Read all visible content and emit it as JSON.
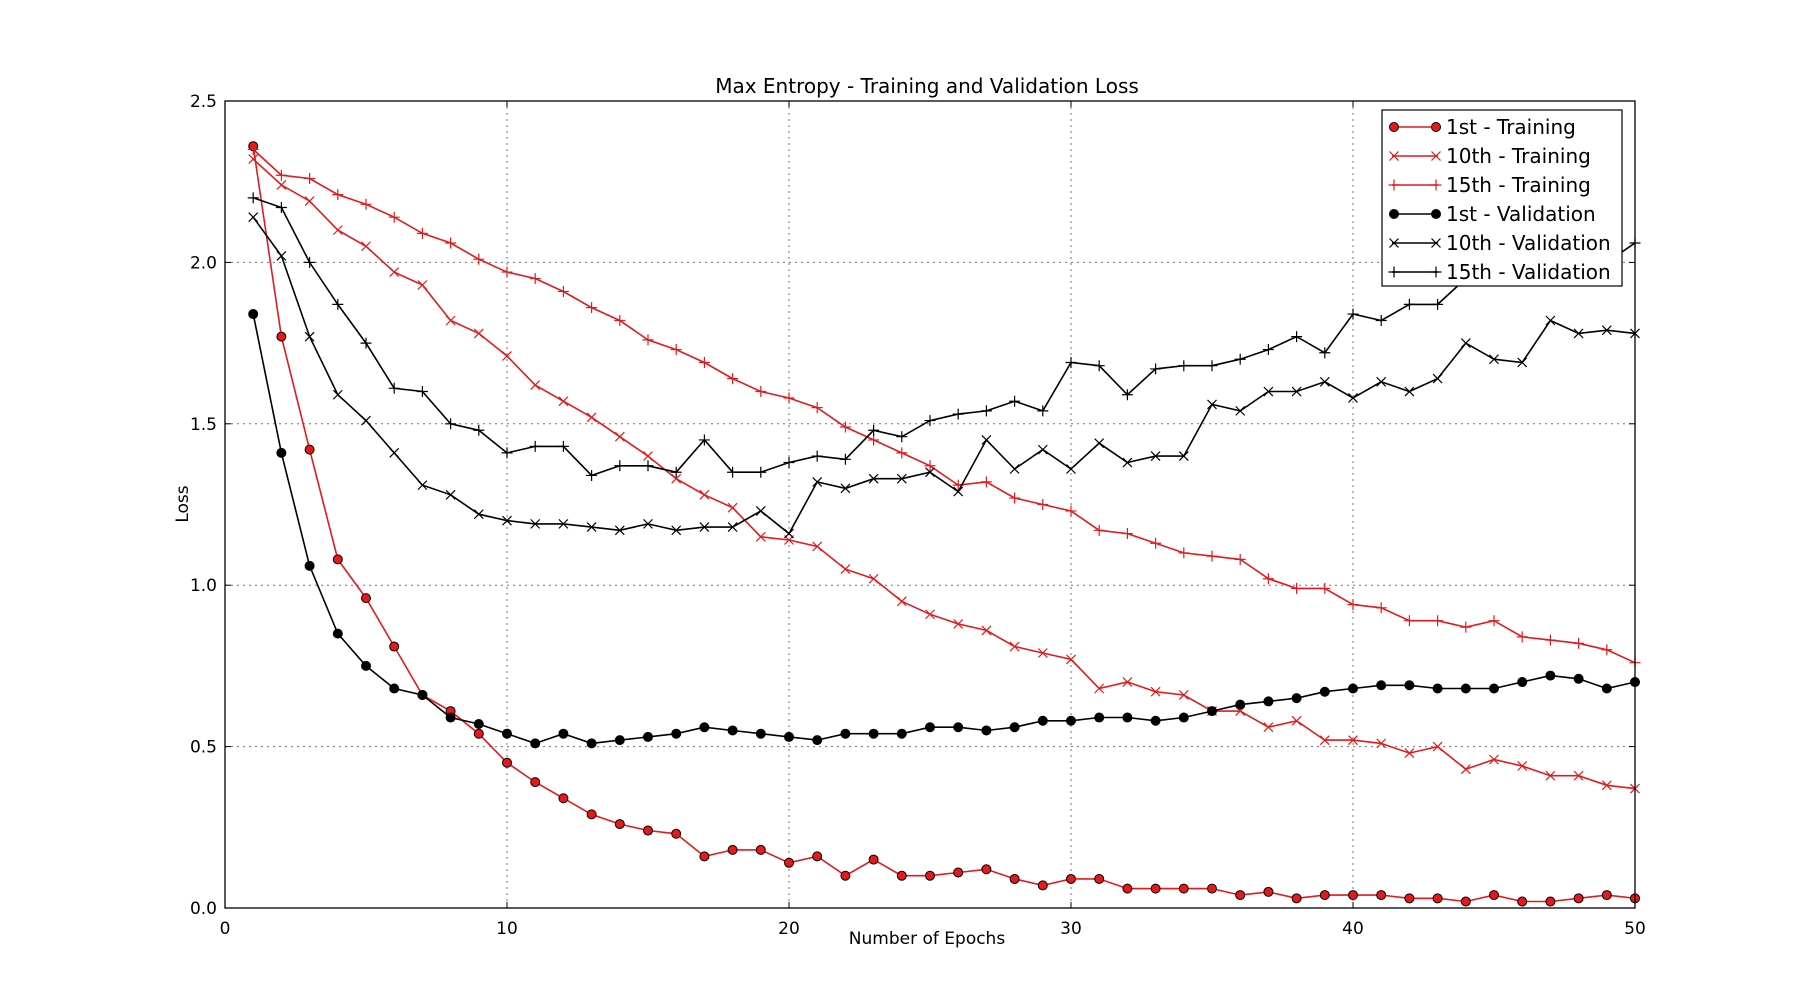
{
  "chart_data": {
    "type": "line",
    "title": "Max Entropy - Training and Validation Loss",
    "xlabel": "Number of Epochs",
    "ylabel": "Loss",
    "xlim": [
      0,
      50
    ],
    "ylim": [
      0,
      2.5
    ],
    "xticks": [
      "0",
      "10",
      "20",
      "30",
      "40",
      "50"
    ],
    "yticks": [
      "0.0",
      "0.5",
      "1.0",
      "1.5",
      "2.0",
      "2.5"
    ],
    "grid": true,
    "legend_position": "top-right",
    "x": [
      1,
      2,
      3,
      4,
      5,
      6,
      7,
      8,
      9,
      10,
      11,
      12,
      13,
      14,
      15,
      16,
      17,
      18,
      19,
      20,
      21,
      22,
      23,
      24,
      25,
      26,
      27,
      28,
      29,
      30,
      31,
      32,
      33,
      34,
      35,
      36,
      37,
      38,
      39,
      40,
      41,
      42,
      43,
      44,
      45,
      46,
      47,
      48,
      49,
      50
    ],
    "series": [
      {
        "name": "1st - Training",
        "color": "#e31a1c",
        "marker": "circle",
        "values": [
          2.36,
          1.77,
          1.42,
          1.08,
          0.96,
          0.81,
          0.66,
          0.61,
          0.54,
          0.45,
          0.39,
          0.34,
          0.29,
          0.26,
          0.24,
          0.23,
          0.16,
          0.18,
          0.18,
          0.14,
          0.16,
          0.1,
          0.15,
          0.1,
          0.1,
          0.11,
          0.12,
          0.09,
          0.07,
          0.09,
          0.09,
          0.06,
          0.06,
          0.06,
          0.06,
          0.04,
          0.05,
          0.03,
          0.04,
          0.04,
          0.04,
          0.03,
          0.03,
          0.02,
          0.04,
          0.02,
          0.02,
          0.03,
          0.04,
          0.03
        ]
      },
      {
        "name": "10th - Training",
        "color": "#e31a1c",
        "marker": "x",
        "values": [
          2.32,
          2.24,
          2.19,
          2.1,
          2.05,
          1.97,
          1.93,
          1.82,
          1.78,
          1.71,
          1.62,
          1.57,
          1.52,
          1.46,
          1.4,
          1.33,
          1.28,
          1.24,
          1.15,
          1.14,
          1.12,
          1.05,
          1.02,
          0.95,
          0.91,
          0.88,
          0.86,
          0.81,
          0.79,
          0.77,
          0.68,
          0.7,
          0.67,
          0.66,
          0.61,
          0.61,
          0.56,
          0.58,
          0.52,
          0.52,
          0.51,
          0.48,
          0.5,
          0.43,
          0.46,
          0.44,
          0.41,
          0.41,
          0.38,
          0.37
        ]
      },
      {
        "name": "15th - Training",
        "color": "#e31a1c",
        "marker": "plus",
        "values": [
          2.35,
          2.27,
          2.26,
          2.21,
          2.18,
          2.14,
          2.09,
          2.06,
          2.01,
          1.97,
          1.95,
          1.91,
          1.86,
          1.82,
          1.76,
          1.73,
          1.69,
          1.64,
          1.6,
          1.58,
          1.55,
          1.49,
          1.45,
          1.41,
          1.37,
          1.31,
          1.32,
          1.27,
          1.25,
          1.23,
          1.17,
          1.16,
          1.13,
          1.1,
          1.09,
          1.08,
          1.02,
          0.99,
          0.99,
          0.94,
          0.93,
          0.89,
          0.89,
          0.87,
          0.89,
          0.84,
          0.83,
          0.82,
          0.8,
          0.76
        ]
      },
      {
        "name": "1st - Validation",
        "color": "#000000",
        "marker": "circle",
        "values": [
          1.84,
          1.41,
          1.06,
          0.85,
          0.75,
          0.68,
          0.66,
          0.59,
          0.57,
          0.54,
          0.51,
          0.54,
          0.51,
          0.52,
          0.53,
          0.54,
          0.56,
          0.55,
          0.54,
          0.53,
          0.52,
          0.54,
          0.54,
          0.54,
          0.56,
          0.56,
          0.55,
          0.56,
          0.58,
          0.58,
          0.59,
          0.59,
          0.58,
          0.59,
          0.61,
          0.63,
          0.64,
          0.65,
          0.67,
          0.68,
          0.69,
          0.69,
          0.68,
          0.68,
          0.68,
          0.7,
          0.72,
          0.71,
          0.68,
          0.7
        ]
      },
      {
        "name": "10th - Validation",
        "color": "#000000",
        "marker": "x",
        "values": [
          2.14,
          2.02,
          1.77,
          1.59,
          1.51,
          1.41,
          1.31,
          1.28,
          1.22,
          1.2,
          1.19,
          1.19,
          1.18,
          1.17,
          1.19,
          1.17,
          1.18,
          1.18,
          1.23,
          1.16,
          1.32,
          1.3,
          1.33,
          1.33,
          1.35,
          1.29,
          1.45,
          1.36,
          1.42,
          1.36,
          1.44,
          1.38,
          1.4,
          1.4,
          1.56,
          1.54,
          1.6,
          1.6,
          1.63,
          1.58,
          1.63,
          1.6,
          1.64,
          1.75,
          1.7,
          1.69,
          1.82,
          1.78,
          1.79,
          1.78
        ]
      },
      {
        "name": "15th - Validation",
        "color": "#000000",
        "marker": "plus",
        "values": [
          2.2,
          2.17,
          2.0,
          1.87,
          1.75,
          1.61,
          1.6,
          1.5,
          1.48,
          1.41,
          1.43,
          1.43,
          1.34,
          1.37,
          1.37,
          1.35,
          1.45,
          1.35,
          1.35,
          1.38,
          1.4,
          1.39,
          1.48,
          1.46,
          1.51,
          1.53,
          1.54,
          1.57,
          1.54,
          1.69,
          1.68,
          1.59,
          1.67,
          1.68,
          1.68,
          1.7,
          1.73,
          1.77,
          1.72,
          1.84,
          1.82,
          1.87,
          1.87,
          1.95,
          1.98,
          2.02,
          2.06,
          1.99,
          2.0,
          2.06
        ]
      }
    ]
  }
}
